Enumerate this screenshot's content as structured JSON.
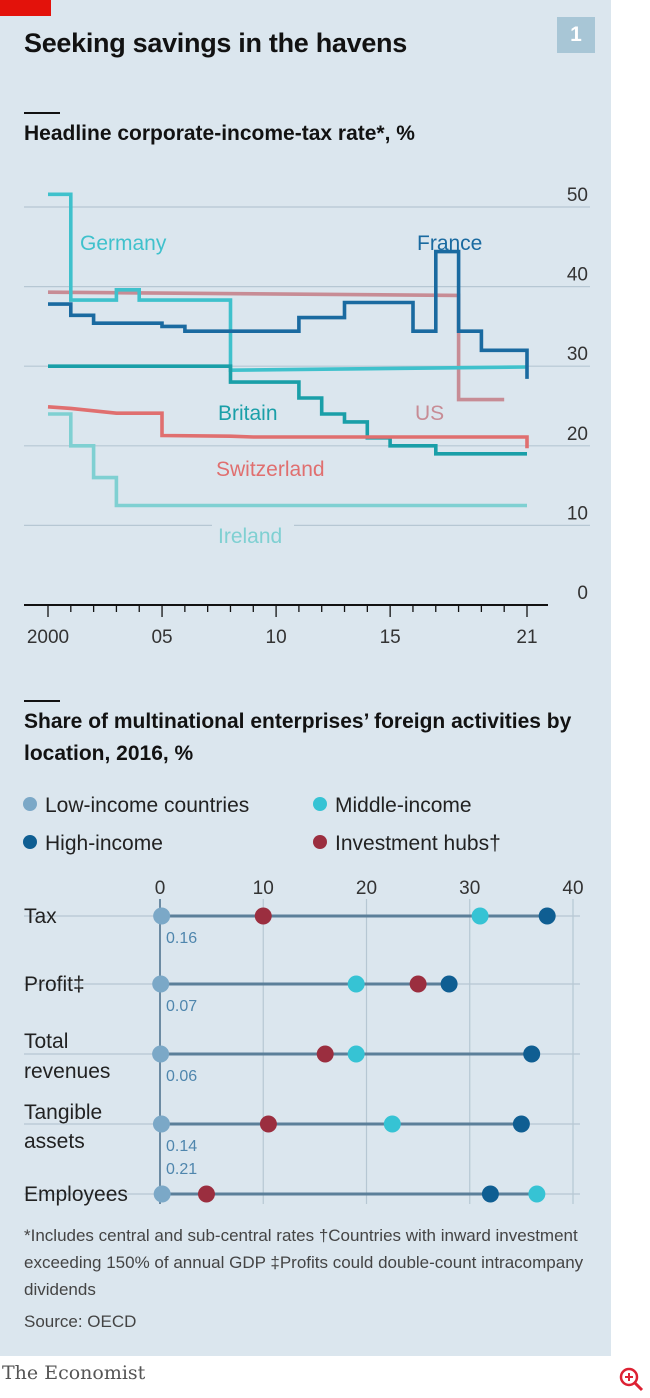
{
  "header": {
    "title": "Seeking savings in the havens",
    "badge": "1",
    "brand": "The Economist"
  },
  "colors": {
    "background": "#dbe6ee",
    "accent_red": "#e3120b",
    "germany": "#3fc1cc",
    "france": "#1a6aa0",
    "britain": "#1a9fa8",
    "us": "#c78c95",
    "switzerland": "#e06f6f",
    "ireland": "#7fd0d2",
    "low_income": "#7ba8c7",
    "middle_income": "#36c3d4",
    "high_income": "#0f5e92",
    "investment_hubs": "#9b2e3f"
  },
  "chart_data": [
    {
      "type": "line",
      "title": "Headline corporate-income-tax rate*, %",
      "x_ticks": [
        "2000",
        "05",
        "10",
        "15",
        "21"
      ],
      "y_ticks": [
        "0",
        "10",
        "20",
        "30",
        "40",
        "50"
      ],
      "xlim": [
        2000,
        2021
      ],
      "ylim": [
        0,
        50
      ],
      "series": [
        {
          "name": "Germany",
          "label": "Germany",
          "color": "#3fc1cc",
          "points": [
            [
              2000,
              51.6
            ],
            [
              2001,
              51.6
            ],
            [
              2001,
              38.3
            ],
            [
              2003,
              38.3
            ],
            [
              2003,
              39.6
            ],
            [
              2004,
              39.6
            ],
            [
              2004,
              38.3
            ],
            [
              2008,
              38.3
            ],
            [
              2008,
              29.5
            ],
            [
              2021,
              29.9
            ]
          ]
        },
        {
          "name": "France",
          "label": "France",
          "color": "#1a6aa0",
          "points": [
            [
              2000,
              37.8
            ],
            [
              2001,
              37.8
            ],
            [
              2001,
              36.4
            ],
            [
              2002,
              36.4
            ],
            [
              2002,
              35.4
            ],
            [
              2005,
              35.4
            ],
            [
              2005,
              35
            ],
            [
              2006,
              35
            ],
            [
              2006,
              34.4
            ],
            [
              2011,
              34.4
            ],
            [
              2011,
              36.1
            ],
            [
              2013,
              36.1
            ],
            [
              2013,
              38
            ],
            [
              2016,
              38
            ],
            [
              2016,
              34.4
            ],
            [
              2017,
              34.4
            ],
            [
              2017,
              44.4
            ],
            [
              2018,
              44.4
            ],
            [
              2018,
              34.4
            ],
            [
              2019,
              34.4
            ],
            [
              2019,
              32
            ],
            [
              2020,
              32
            ],
            [
              2020,
              32.0
            ],
            [
              2021,
              32.0
            ],
            [
              2021,
              28.4
            ]
          ]
        },
        {
          "name": "Britain",
          "label": "Britain",
          "color": "#1a9fa8",
          "points": [
            [
              2000,
              30
            ],
            [
              2008,
              30
            ],
            [
              2008,
              28
            ],
            [
              2011,
              28
            ],
            [
              2011,
              26
            ],
            [
              2012,
              26
            ],
            [
              2012,
              24
            ],
            [
              2013,
              24
            ],
            [
              2013,
              23
            ],
            [
              2014,
              23
            ],
            [
              2014,
              21
            ],
            [
              2015,
              21
            ],
            [
              2015,
              20
            ],
            [
              2017,
              20
            ],
            [
              2017,
              19
            ],
            [
              2021,
              19
            ]
          ]
        },
        {
          "name": "US",
          "label": "US",
          "color": "#c78c95",
          "points": [
            [
              2000,
              39.3
            ],
            [
              2018,
              38.9
            ],
            [
              2018,
              25.8
            ],
            [
              2020,
              25.8
            ]
          ]
        },
        {
          "name": "Switzerland",
          "label": "Switzerland",
          "color": "#e06f6f",
          "points": [
            [
              2000,
              24.9
            ],
            [
              2001,
              24.7
            ],
            [
              2003,
              24.1
            ],
            [
              2005,
              24.1
            ],
            [
              2005,
              21.3
            ],
            [
              2008,
              21.2
            ],
            [
              2009,
              21.1
            ],
            [
              2021,
              21.1
            ],
            [
              2021,
              19.7
            ]
          ]
        },
        {
          "name": "Ireland",
          "label": "Ireland",
          "color": "#7fd0d2",
          "points": [
            [
              2000,
              24
            ],
            [
              2001,
              24
            ],
            [
              2001,
              20
            ],
            [
              2002,
              20
            ],
            [
              2002,
              16
            ],
            [
              2003,
              16
            ],
            [
              2003,
              12.5
            ],
            [
              2021,
              12.5
            ]
          ]
        }
      ]
    },
    {
      "type": "dot",
      "title": "Share of multinational enterprises’ foreign activities by location, 2016, %",
      "x_ticks": [
        "0",
        "10",
        "20",
        "30",
        "40"
      ],
      "xlim": [
        0,
        40
      ],
      "legend": [
        {
          "name": "Low-income countries",
          "color": "#7ba8c7"
        },
        {
          "name": "Middle-income",
          "color": "#36c3d4"
        },
        {
          "name": "High-income",
          "color": "#0f5e92"
        },
        {
          "name": "Investment hubs†",
          "color": "#9b2e3f"
        }
      ],
      "categories": [
        "Tax",
        "Profit‡",
        "Total revenues",
        "Tangible assets",
        "Employees"
      ],
      "series": [
        {
          "name": "Low-income countries",
          "values": [
            0.16,
            0.07,
            0.06,
            0.14,
            0.21
          ],
          "labels": [
            "0.16",
            "0.07",
            "0.06",
            "0.14",
            "0.21"
          ]
        },
        {
          "name": "Middle-income",
          "values": [
            31,
            19,
            19,
            22.5,
            36.5
          ]
        },
        {
          "name": "High-income",
          "values": [
            37.5,
            28,
            36,
            35,
            32
          ]
        },
        {
          "name": "Investment hubs†",
          "values": [
            10,
            25,
            16,
            10.5,
            4.5
          ]
        }
      ]
    }
  ],
  "footnotes": {
    "line1": "*Includes central and sub-central rates   †Countries with inward investment exceeding 150% of annual GDP   ‡Profits could double-count intracompany dividends",
    "source": "Source: OECD"
  }
}
